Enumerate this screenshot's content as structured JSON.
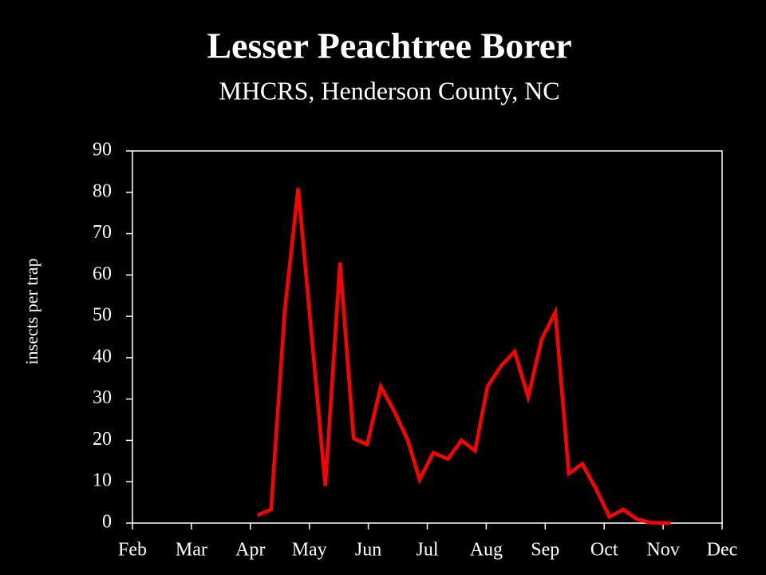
{
  "chart_data": {
    "type": "line",
    "title": "Lesser Peachtree Borer",
    "subtitle": "MHCRS, Henderson County, NC",
    "y_label": "insects per trap",
    "series": [
      {
        "color": "#ff0000",
        "x": [
          2.12,
          2.35,
          2.58,
          2.81,
          3.27,
          3.52,
          3.75,
          3.98,
          4.21,
          4.44,
          4.67,
          4.87,
          5.1,
          5.35,
          5.58,
          5.81,
          6.02,
          6.25,
          6.48,
          6.71,
          6.94,
          7.17,
          7.4,
          7.63,
          7.86,
          8.09,
          8.32,
          8.55,
          8.78,
          9.13
        ],
        "values": [
          1.9,
          3.3,
          51,
          81,
          9,
          63,
          20.5,
          19,
          33,
          27,
          20,
          10.5,
          17,
          15.5,
          20,
          17.5,
          33,
          38,
          41.5,
          30.5,
          44.5,
          51,
          12,
          14.3,
          8.3,
          1.5,
          3.3,
          1,
          0.1,
          0
        ]
      }
    ],
    "xlim": [
      0,
      10
    ],
    "xticks": [
      {
        "value": 0,
        "label": "Feb"
      },
      {
        "value": 1,
        "label": "Mar"
      },
      {
        "value": 2,
        "label": "Apr"
      },
      {
        "value": 3,
        "label": "May"
      },
      {
        "value": 4,
        "label": "Jun"
      },
      {
        "value": 5,
        "label": "Jul"
      },
      {
        "value": 6,
        "label": "Aug"
      },
      {
        "value": 7,
        "label": "Sep"
      },
      {
        "value": 8,
        "label": "Oct"
      },
      {
        "value": 9,
        "label": "Nov"
      },
      {
        "value": 10,
        "label": "Dec"
      }
    ],
    "ylim": [
      0,
      90
    ],
    "yticks": [
      0,
      10,
      20,
      30,
      40,
      50,
      60,
      70,
      80,
      90
    ]
  }
}
